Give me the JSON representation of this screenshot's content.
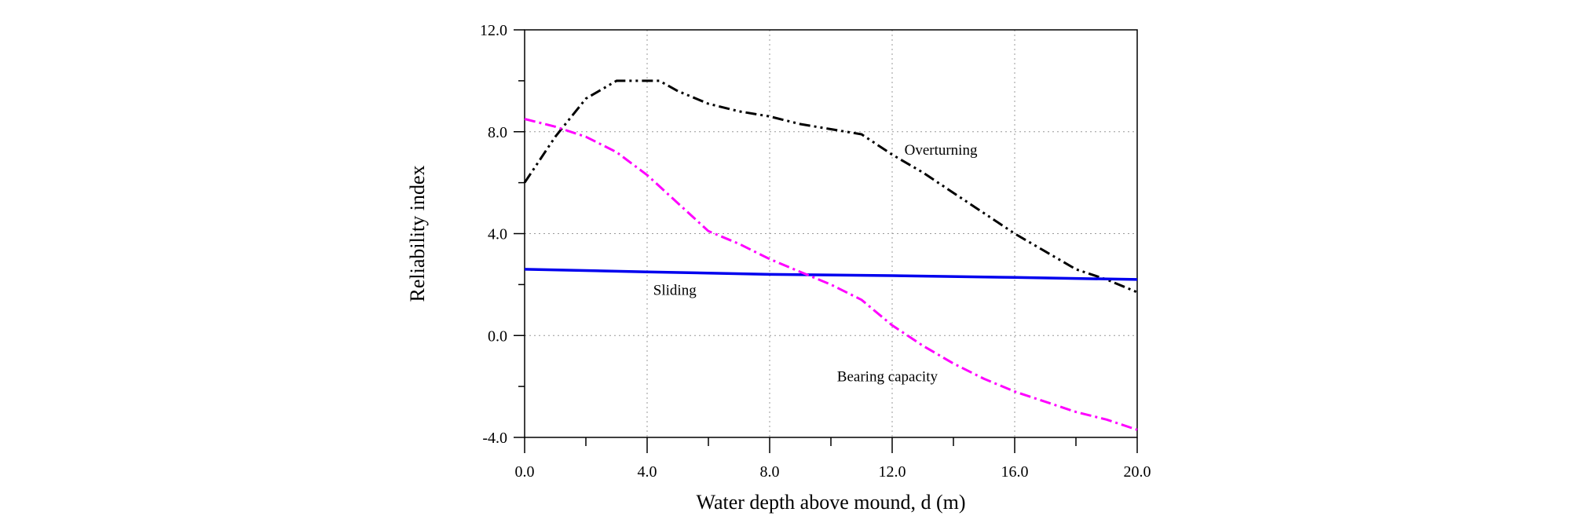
{
  "chart_data": {
    "type": "line",
    "xlabel": "Water depth above mound, d (m)",
    "ylabel": "Reliability index",
    "xlim": [
      0,
      20
    ],
    "ylim": [
      -4,
      12
    ],
    "x_ticks": [
      "0.0",
      "4.0",
      "8.0",
      "12.0",
      "16.0",
      "20.0"
    ],
    "y_ticks": [
      "-4.0",
      "0.0",
      "4.0",
      "8.0",
      "12.0"
    ],
    "grid": "dotted",
    "series": [
      {
        "name": "Overturning",
        "color": "#000000",
        "style": "dash-dot-dot",
        "x": [
          0,
          1,
          2,
          3,
          4.4,
          5,
          6,
          7,
          8,
          9,
          10,
          11,
          12,
          13,
          14,
          15,
          16,
          17,
          18,
          19,
          20
        ],
        "y": [
          6.0,
          7.8,
          9.3,
          10.0,
          10.0,
          9.6,
          9.1,
          8.8,
          8.6,
          8.3,
          8.1,
          7.9,
          7.1,
          6.4,
          5.6,
          4.8,
          4.0,
          3.3,
          2.6,
          2.2,
          1.7
        ]
      },
      {
        "name": "Sliding",
        "color": "#0000ee",
        "style": "solid",
        "x": [
          0,
          4,
          8,
          12,
          16,
          20
        ],
        "y": [
          2.6,
          2.5,
          2.4,
          2.35,
          2.28,
          2.2
        ]
      },
      {
        "name": "Bearing capacity",
        "color": "#ff00ff",
        "style": "dash-dot",
        "x": [
          0,
          1,
          2,
          3,
          4,
          5,
          6,
          7,
          8,
          9,
          10,
          11,
          12,
          13,
          14,
          15,
          16,
          17,
          18,
          19,
          20
        ],
        "y": [
          8.5,
          8.2,
          7.8,
          7.2,
          6.3,
          5.2,
          4.1,
          3.6,
          3.0,
          2.5,
          2.0,
          1.4,
          0.4,
          -0.4,
          -1.1,
          -1.7,
          -2.2,
          -2.6,
          -3.0,
          -3.3,
          -3.7
        ]
      }
    ],
    "annotations": [
      {
        "text": "Overturning",
        "x": 12.4,
        "y": 7.1
      },
      {
        "text": "Sliding",
        "x": 4.2,
        "y": 1.6
      },
      {
        "text": "Bearing capacity",
        "x": 10.2,
        "y": -1.8
      }
    ]
  }
}
